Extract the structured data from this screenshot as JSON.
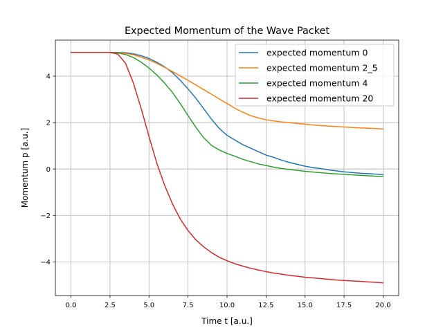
{
  "chart_data": {
    "type": "line",
    "title": "Expected Momentum of the Wave Packet",
    "xlabel": "Time t [a.u.]",
    "ylabel": "Momentum p [a.u.]",
    "xlim": [
      -1.0,
      21.0
    ],
    "ylim": [
      -5.45,
      5.55
    ],
    "xticks": [
      0.0,
      2.5,
      5.0,
      7.5,
      10.0,
      12.5,
      15.0,
      17.5,
      20.0
    ],
    "xtick_labels": [
      "0.0",
      "2.5",
      "5.0",
      "7.5",
      "10.0",
      "12.5",
      "15.0",
      "17.5",
      "20.0"
    ],
    "yticks": [
      -4,
      -2,
      0,
      2,
      4
    ],
    "ytick_labels": [
      "−4",
      "−2",
      "0",
      "2",
      "4"
    ],
    "grid": true,
    "legend_placement": "top-right",
    "series": [
      {
        "name": "expected momentum 0",
        "color": "#1f77b4",
        "points": [
          [
            0,
            5.02
          ],
          [
            1,
            5.02
          ],
          [
            2,
            5.02
          ],
          [
            2.5,
            5.02
          ],
          [
            3,
            5.02
          ],
          [
            3.5,
            5.01
          ],
          [
            4,
            4.96
          ],
          [
            4.5,
            4.88
          ],
          [
            5,
            4.76
          ],
          [
            5.5,
            4.6
          ],
          [
            6,
            4.4
          ],
          [
            6.5,
            4.15
          ],
          [
            7,
            3.82
          ],
          [
            7.5,
            3.45
          ],
          [
            8,
            3.05
          ],
          [
            8.5,
            2.6
          ],
          [
            9,
            2.15
          ],
          [
            9.5,
            1.75
          ],
          [
            10,
            1.45
          ],
          [
            10.5,
            1.25
          ],
          [
            11,
            1.05
          ],
          [
            11.5,
            0.9
          ],
          [
            12,
            0.75
          ],
          [
            12.5,
            0.6
          ],
          [
            13,
            0.5
          ],
          [
            13.5,
            0.38
          ],
          [
            14,
            0.28
          ],
          [
            14.5,
            0.2
          ],
          [
            15,
            0.12
          ],
          [
            15.5,
            0.06
          ],
          [
            16,
            0.02
          ],
          [
            16.5,
            -0.04
          ],
          [
            17,
            -0.08
          ],
          [
            17.5,
            -0.12
          ],
          [
            18,
            -0.15
          ],
          [
            18.5,
            -0.18
          ],
          [
            19,
            -0.2
          ],
          [
            19.5,
            -0.22
          ],
          [
            20,
            -0.24
          ]
        ]
      },
      {
        "name": "expected momentum 2_5",
        "color": "#ff7f0e",
        "points": [
          [
            0,
            5.02
          ],
          [
            1,
            5.02
          ],
          [
            2,
            5.02
          ],
          [
            2.5,
            5.02
          ],
          [
            3,
            5.01
          ],
          [
            3.5,
            4.98
          ],
          [
            4,
            4.92
          ],
          [
            4.5,
            4.82
          ],
          [
            5,
            4.7
          ],
          [
            5.5,
            4.55
          ],
          [
            6,
            4.38
          ],
          [
            6.5,
            4.2
          ],
          [
            7,
            4.01
          ],
          [
            7.5,
            3.82
          ],
          [
            8,
            3.62
          ],
          [
            8.5,
            3.42
          ],
          [
            9,
            3.22
          ],
          [
            9.5,
            3.02
          ],
          [
            10,
            2.82
          ],
          [
            10.5,
            2.62
          ],
          [
            11,
            2.45
          ],
          [
            11.5,
            2.3
          ],
          [
            12,
            2.2
          ],
          [
            12.5,
            2.12
          ],
          [
            13,
            2.07
          ],
          [
            13.5,
            2.03
          ],
          [
            14,
            2.0
          ],
          [
            14.5,
            1.96
          ],
          [
            15,
            1.93
          ],
          [
            15.5,
            1.9
          ],
          [
            16,
            1.87
          ],
          [
            16.5,
            1.85
          ],
          [
            17,
            1.83
          ],
          [
            17.5,
            1.81
          ],
          [
            18,
            1.79
          ],
          [
            18.5,
            1.77
          ],
          [
            19,
            1.76
          ],
          [
            19.5,
            1.74
          ],
          [
            20,
            1.72
          ]
        ]
      },
      {
        "name": "expected momentum 4",
        "color": "#2ca02c",
        "points": [
          [
            0,
            5.02
          ],
          [
            1,
            5.02
          ],
          [
            2,
            5.02
          ],
          [
            2.5,
            5.02
          ],
          [
            3,
            5.0
          ],
          [
            3.5,
            4.93
          ],
          [
            4,
            4.8
          ],
          [
            4.5,
            4.6
          ],
          [
            5,
            4.35
          ],
          [
            5.5,
            4.05
          ],
          [
            6,
            3.7
          ],
          [
            6.5,
            3.3
          ],
          [
            7,
            2.82
          ],
          [
            7.5,
            2.3
          ],
          [
            8,
            1.8
          ],
          [
            8.5,
            1.35
          ],
          [
            9,
            1.02
          ],
          [
            9.5,
            0.82
          ],
          [
            10,
            0.67
          ],
          [
            10.5,
            0.55
          ],
          [
            11,
            0.42
          ],
          [
            11.5,
            0.32
          ],
          [
            12,
            0.22
          ],
          [
            12.5,
            0.15
          ],
          [
            13,
            0.08
          ],
          [
            13.5,
            0.02
          ],
          [
            14,
            -0.02
          ],
          [
            14.5,
            -0.06
          ],
          [
            15,
            -0.1
          ],
          [
            15.5,
            -0.13
          ],
          [
            16,
            -0.16
          ],
          [
            16.5,
            -0.19
          ],
          [
            17,
            -0.21
          ],
          [
            17.5,
            -0.23
          ],
          [
            18,
            -0.25
          ],
          [
            18.5,
            -0.27
          ],
          [
            19,
            -0.29
          ],
          [
            19.5,
            -0.31
          ],
          [
            20,
            -0.33
          ]
        ]
      },
      {
        "name": "expected momentum 20",
        "color": "#d62728",
        "points": [
          [
            0,
            5.02
          ],
          [
            1,
            5.02
          ],
          [
            2,
            5.02
          ],
          [
            2.5,
            5.02
          ],
          [
            3,
            4.95
          ],
          [
            3.5,
            4.55
          ],
          [
            4,
            3.7
          ],
          [
            4.5,
            2.6
          ],
          [
            5,
            1.4
          ],
          [
            5.5,
            0.25
          ],
          [
            6,
            -0.7
          ],
          [
            6.5,
            -1.5
          ],
          [
            7,
            -2.15
          ],
          [
            7.5,
            -2.65
          ],
          [
            8,
            -3.05
          ],
          [
            8.5,
            -3.35
          ],
          [
            9,
            -3.6
          ],
          [
            9.5,
            -3.8
          ],
          [
            10,
            -3.95
          ],
          [
            10.5,
            -4.08
          ],
          [
            11,
            -4.18
          ],
          [
            11.5,
            -4.27
          ],
          [
            12,
            -4.35
          ],
          [
            12.5,
            -4.42
          ],
          [
            13,
            -4.48
          ],
          [
            13.5,
            -4.53
          ],
          [
            14,
            -4.58
          ],
          [
            14.5,
            -4.62
          ],
          [
            15,
            -4.66
          ],
          [
            15.5,
            -4.69
          ],
          [
            16,
            -4.72
          ],
          [
            16.5,
            -4.75
          ],
          [
            17,
            -4.78
          ],
          [
            17.5,
            -4.8
          ],
          [
            18,
            -4.82
          ],
          [
            18.5,
            -4.84
          ],
          [
            19,
            -4.86
          ],
          [
            19.5,
            -4.88
          ],
          [
            20,
            -4.9
          ]
        ]
      }
    ]
  }
}
